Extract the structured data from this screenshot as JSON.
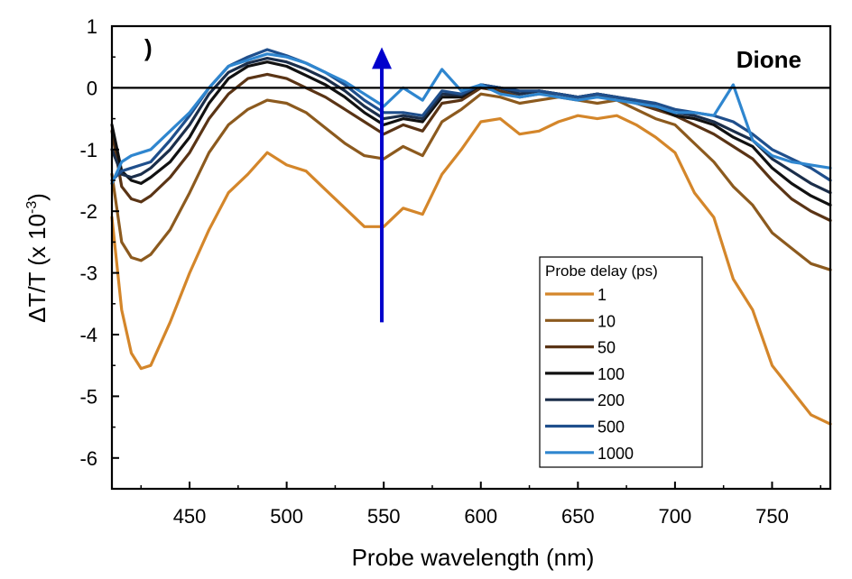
{
  "chart_data": {
    "type": "line",
    "title": "",
    "panel_label": ")",
    "annotation": "Dione",
    "xlabel": "Probe wavelength (nm)",
    "ylabel_main": "ΔT/T (x 10",
    "ylabel_exp": "-3",
    "ylabel_close": ")",
    "xlim": [
      410,
      780
    ],
    "ylim": [
      -6.5,
      1
    ],
    "x_ticks": [
      450,
      500,
      550,
      600,
      650,
      700,
      750
    ],
    "x_tick_labels": [
      "450",
      "500",
      "550",
      "600",
      "650",
      "700",
      "750"
    ],
    "y_ticks": [
      1,
      0,
      -1,
      -2,
      -3,
      -4,
      -5,
      -6
    ],
    "y_tick_labels": [
      "1",
      "0",
      "-1",
      "-2",
      "-3",
      "-4",
      "-5",
      "-6"
    ],
    "zero_line": 0,
    "arrow": {
      "x": 549,
      "y_from": -3.8,
      "y_to": 0.6,
      "color": "#0000cc"
    },
    "legend": {
      "title": "Probe delay (ps)",
      "placement": "bottom-right"
    },
    "x": [
      410,
      415,
      420,
      425,
      430,
      440,
      450,
      460,
      470,
      480,
      490,
      500,
      510,
      520,
      530,
      540,
      550,
      560,
      570,
      580,
      590,
      600,
      610,
      620,
      630,
      640,
      650,
      660,
      670,
      680,
      690,
      700,
      710,
      720,
      730,
      740,
      750,
      760,
      770,
      780
    ],
    "series": [
      {
        "name": "1",
        "color": "#d4862a",
        "values": [
          -2.1,
          -3.6,
          -4.3,
          -4.55,
          -4.5,
          -3.8,
          -3.0,
          -2.3,
          -1.7,
          -1.4,
          -1.05,
          -1.25,
          -1.35,
          -1.65,
          -1.95,
          -2.25,
          -2.25,
          -1.95,
          -2.05,
          -1.4,
          -1.0,
          -0.55,
          -0.5,
          -0.75,
          -0.7,
          -0.55,
          -0.45,
          -0.5,
          -0.45,
          -0.6,
          -0.8,
          -1.05,
          -1.7,
          -2.1,
          -3.1,
          -3.6,
          -4.5,
          -4.9,
          -5.3,
          -5.45
        ]
      },
      {
        "name": "10",
        "color": "#8c5a1e",
        "values": [
          -1.4,
          -2.5,
          -2.75,
          -2.8,
          -2.7,
          -2.3,
          -1.7,
          -1.05,
          -0.6,
          -0.35,
          -0.2,
          -0.25,
          -0.4,
          -0.65,
          -0.9,
          -1.1,
          -1.15,
          -0.95,
          -1.1,
          -0.55,
          -0.35,
          -0.1,
          -0.15,
          -0.25,
          -0.2,
          -0.15,
          -0.2,
          -0.25,
          -0.2,
          -0.35,
          -0.5,
          -0.6,
          -0.9,
          -1.2,
          -1.6,
          -1.9,
          -2.35,
          -2.6,
          -2.85,
          -2.95
        ]
      },
      {
        "name": "50",
        "color": "#5a3415",
        "values": [
          -0.7,
          -1.6,
          -1.8,
          -1.85,
          -1.75,
          -1.45,
          -1.05,
          -0.5,
          -0.1,
          0.15,
          0.22,
          0.15,
          0.0,
          -0.15,
          -0.35,
          -0.55,
          -0.75,
          -0.6,
          -0.7,
          -0.25,
          -0.2,
          0.0,
          -0.05,
          -0.15,
          -0.1,
          -0.1,
          -0.15,
          -0.15,
          -0.15,
          -0.25,
          -0.35,
          -0.45,
          -0.6,
          -0.75,
          -0.95,
          -1.15,
          -1.5,
          -1.8,
          -2.0,
          -2.15
        ]
      },
      {
        "name": "100",
        "color": "#111111",
        "values": [
          -0.6,
          -1.35,
          -1.5,
          -1.55,
          -1.45,
          -1.2,
          -0.8,
          -0.25,
          0.15,
          0.35,
          0.42,
          0.35,
          0.2,
          0.05,
          -0.15,
          -0.4,
          -0.6,
          -0.5,
          -0.55,
          -0.15,
          -0.15,
          0.05,
          0.0,
          -0.1,
          -0.05,
          -0.1,
          -0.15,
          -0.1,
          -0.15,
          -0.25,
          -0.3,
          -0.45,
          -0.5,
          -0.6,
          -0.8,
          -0.95,
          -1.3,
          -1.55,
          -1.75,
          -1.9
        ]
      },
      {
        "name": "200",
        "color": "#1b2e4a",
        "values": [
          -1.0,
          -1.4,
          -1.45,
          -1.4,
          -1.3,
          -1.0,
          -0.6,
          -0.1,
          0.25,
          0.4,
          0.48,
          0.42,
          0.3,
          0.15,
          -0.05,
          -0.3,
          -0.5,
          -0.45,
          -0.5,
          -0.1,
          -0.12,
          0.05,
          0.0,
          -0.1,
          -0.05,
          -0.1,
          -0.15,
          -0.1,
          -0.15,
          -0.2,
          -0.3,
          -0.4,
          -0.45,
          -0.55,
          -0.7,
          -0.85,
          -1.15,
          -1.35,
          -1.55,
          -1.7
        ]
      },
      {
        "name": "500",
        "color": "#1f4f8c",
        "values": [
          -1.5,
          -1.35,
          -1.3,
          -1.25,
          -1.2,
          -0.85,
          -0.45,
          0.0,
          0.35,
          0.5,
          0.62,
          0.52,
          0.4,
          0.25,
          0.05,
          -0.2,
          -0.4,
          -0.4,
          -0.45,
          -0.05,
          -0.1,
          0.05,
          0.0,
          -0.05,
          -0.05,
          -0.1,
          -0.15,
          -0.1,
          -0.15,
          -0.2,
          -0.25,
          -0.35,
          -0.4,
          -0.45,
          -0.55,
          -0.75,
          -1.0,
          -1.15,
          -1.3,
          -1.5
        ]
      },
      {
        "name": "1000",
        "color": "#2f86cf",
        "values": [
          -1.55,
          -1.2,
          -1.1,
          -1.05,
          -1.0,
          -0.7,
          -0.4,
          0.0,
          0.35,
          0.45,
          0.55,
          0.5,
          0.4,
          0.25,
          0.1,
          -0.1,
          -0.3,
          0.0,
          -0.2,
          0.3,
          -0.05,
          0.05,
          -0.1,
          -0.15,
          -0.1,
          -0.15,
          -0.2,
          -0.15,
          -0.2,
          -0.25,
          -0.3,
          -0.4,
          -0.4,
          -0.45,
          0.05,
          -0.85,
          -1.1,
          -1.2,
          -1.25,
          -1.3
        ]
      }
    ]
  }
}
